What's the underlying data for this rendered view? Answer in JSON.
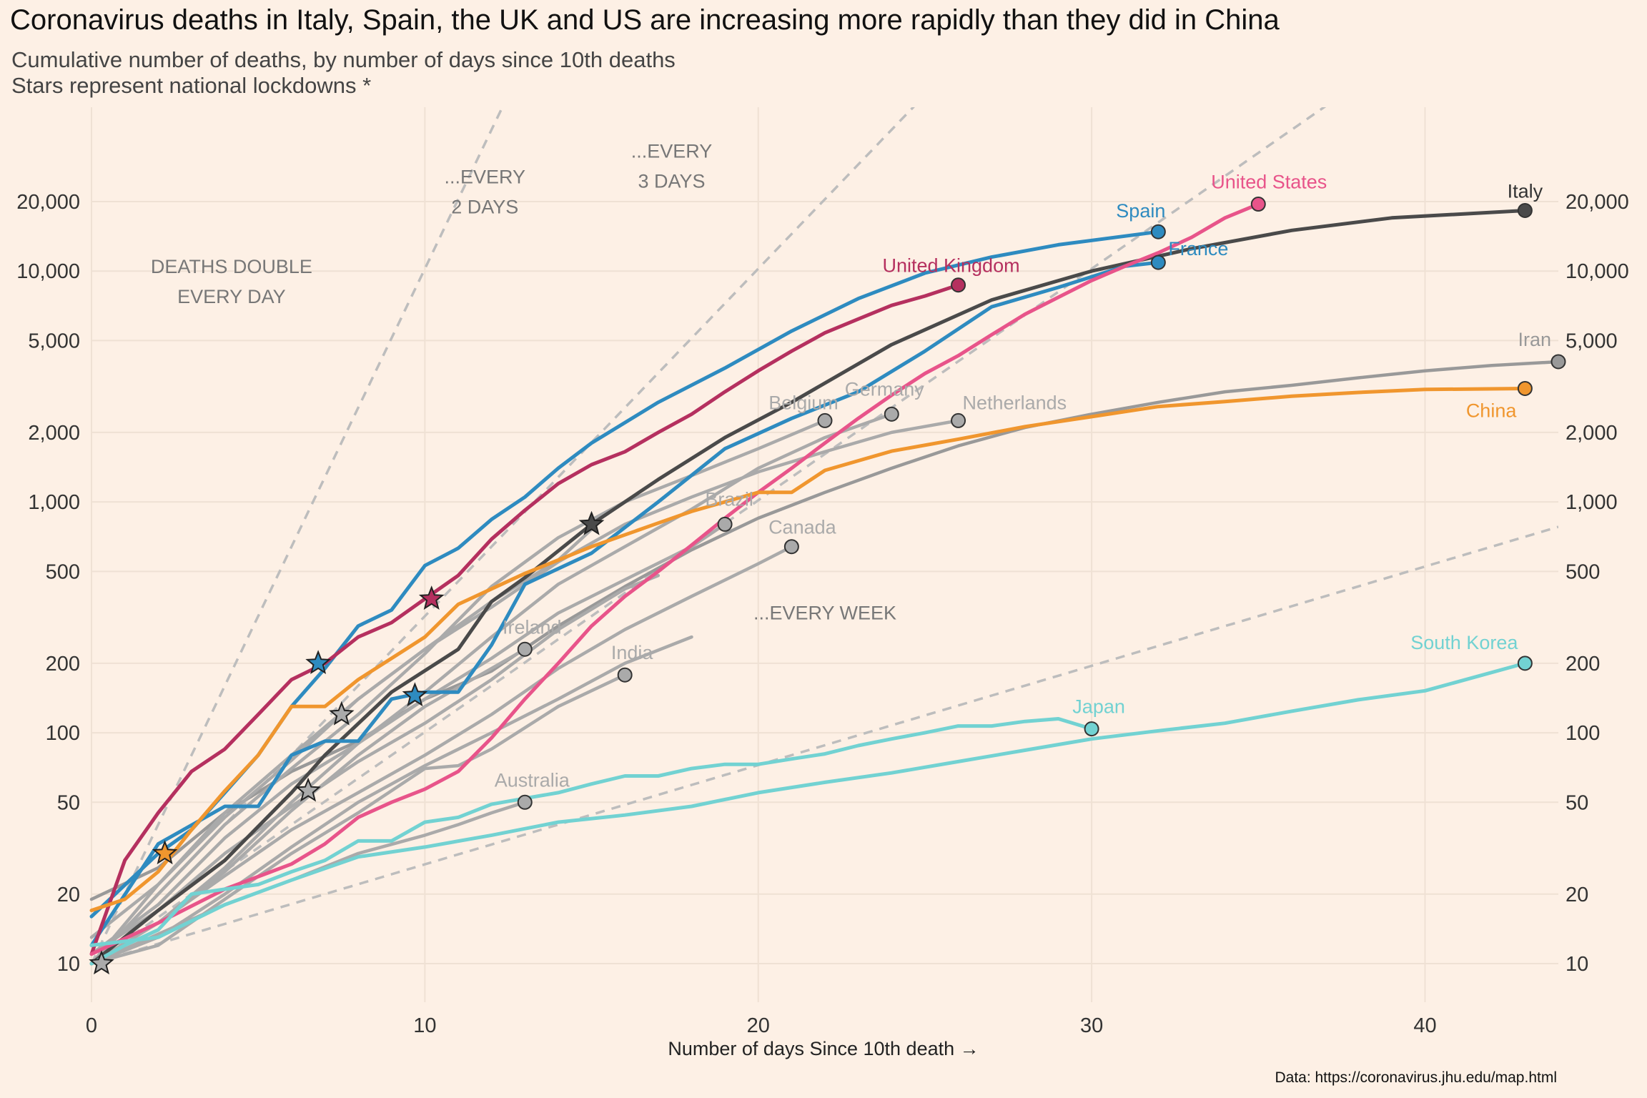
{
  "chart_data": {
    "type": "line",
    "title": "Coronavirus deaths in Italy, Spain, the UK and US are increasing more rapidly than they did in China",
    "subtitle": [
      "Cumulative number of deaths, by number of days since 10th deaths",
      "Stars represent national lockdowns *"
    ],
    "xlabel": "Number of days Since 10th death →",
    "ylabel": "",
    "caption": "Data: https://coronavirus.jhu.edu/map.html",
    "xlim": [
      0,
      44
    ],
    "ylim": [
      7.5,
      40000
    ],
    "yscale": "log",
    "grid": true,
    "legend": "none",
    "x_ticks": [
      0,
      10,
      20,
      30,
      40
    ],
    "x_tick_labels": [
      "0",
      "10",
      "20",
      "30",
      "40"
    ],
    "y_ticks": [
      10,
      20,
      50,
      100,
      200,
      500,
      1000,
      2000,
      5000,
      10000,
      20000
    ],
    "y_tick_labels": [
      "10",
      "20",
      "50",
      "100",
      "200",
      "500",
      "1,000",
      "2,000",
      "5,000",
      "10,000",
      "20,000"
    ],
    "reference_lines": [
      {
        "label": [
          "DEATHS DOUBLE",
          "EVERY DAY"
        ],
        "doubling_days": 1,
        "start": 10
      },
      {
        "label": [
          "...EVERY",
          "2 DAYS"
        ],
        "doubling_days": 2,
        "start": 10
      },
      {
        "label": [
          "...EVERY",
          "3 DAYS"
        ],
        "doubling_days": 3,
        "start": 10
      },
      {
        "label": [
          "...EVERY WEEK"
        ],
        "doubling_days": 7,
        "start": 10
      }
    ],
    "series": [
      {
        "name": "Italy",
        "color": "#4a4a4a",
        "highlight": true,
        "x": [
          0,
          2,
          4,
          6,
          7,
          9,
          11,
          12,
          13,
          15,
          17,
          19,
          21,
          24,
          27,
          30,
          33,
          36,
          39,
          43
        ],
        "y": [
          10,
          17,
          28,
          55,
          80,
          150,
          230,
          370,
          470,
          800,
          1250,
          1900,
          2700,
          4800,
          7500,
          10000,
          12500,
          15000,
          17000,
          18300
        ],
        "end_marker": true,
        "lockdown": [
          15,
          800
        ]
      },
      {
        "name": "Spain",
        "color": "#2e8bc0",
        "highlight": true,
        "x": [
          0,
          2,
          3,
          4,
          5,
          6,
          7,
          8,
          9,
          10,
          11,
          12,
          13,
          14,
          15,
          17,
          19,
          21,
          23,
          25,
          27,
          29,
          32
        ],
        "y": [
          16,
          30,
          38,
          55,
          80,
          130,
          190,
          290,
          340,
          530,
          630,
          840,
          1050,
          1400,
          1800,
          2700,
          3800,
          5500,
          7600,
          9800,
          11500,
          13000,
          14800
        ],
        "end_marker": true,
        "lockdown": [
          6.8,
          200
        ]
      },
      {
        "name": "France",
        "color": "#2e8bc0",
        "highlight": true,
        "x": [
          0,
          2,
          4,
          5,
          6,
          7,
          8,
          9,
          10,
          11,
          12,
          13,
          15,
          17,
          19,
          21,
          23,
          25,
          27,
          29,
          31,
          32
        ],
        "y": [
          12,
          33,
          48,
          48,
          80,
          92,
          92,
          140,
          150,
          150,
          240,
          440,
          600,
          1000,
          1700,
          2300,
          3000,
          4500,
          7000,
          8500,
          10500,
          10900
        ],
        "end_marker": true,
        "lockdown": [
          9.7,
          145
        ]
      },
      {
        "name": "United Kingdom",
        "color": "#b5305f",
        "highlight": true,
        "x": [
          0,
          1,
          2,
          3,
          4,
          5,
          6,
          7,
          8,
          9,
          10,
          11,
          12,
          13,
          14,
          15,
          16,
          17,
          18,
          19,
          20,
          21,
          22,
          23,
          24,
          25,
          26
        ],
        "y": [
          11,
          28,
          45,
          68,
          85,
          120,
          170,
          200,
          260,
          300,
          380,
          480,
          690,
          920,
          1200,
          1450,
          1650,
          2000,
          2400,
          3000,
          3700,
          4500,
          5400,
          6200,
          7100,
          7800,
          8700
        ],
        "end_marker": true,
        "lockdown": [
          10.2,
          380
        ]
      },
      {
        "name": "United States",
        "color": "#e8548a",
        "highlight": true,
        "x": [
          0,
          2,
          4,
          6,
          7,
          8,
          9,
          10,
          11,
          12,
          13,
          14,
          15,
          16,
          17,
          18,
          19,
          20,
          21,
          22,
          23,
          24,
          25,
          26,
          27,
          28,
          29,
          30,
          31,
          32,
          33,
          34,
          35
        ],
        "y": [
          11,
          15,
          21,
          27,
          33,
          43,
          50,
          57,
          68,
          95,
          140,
          200,
          290,
          390,
          500,
          650,
          850,
          1100,
          1400,
          1800,
          2300,
          2900,
          3600,
          4300,
          5300,
          6500,
          7700,
          9100,
          10500,
          12000,
          14000,
          17000,
          19500
        ],
        "end_marker": true
      },
      {
        "name": "China",
        "color": "#f0962e",
        "highlight": true,
        "x": [
          0,
          1,
          2,
          3,
          4,
          5,
          6,
          7,
          8,
          9,
          10,
          11,
          12,
          13,
          14,
          15,
          16,
          17,
          18,
          19,
          20,
          21,
          22,
          24,
          26,
          28,
          30,
          32,
          34,
          36,
          38,
          40,
          43
        ],
        "y": [
          17,
          19,
          25,
          38,
          56,
          80,
          130,
          130,
          170,
          210,
          260,
          360,
          420,
          490,
          560,
          640,
          720,
          810,
          910,
          1000,
          1100,
          1100,
          1370,
          1660,
          1870,
          2120,
          2340,
          2590,
          2720,
          2870,
          2980,
          3070,
          3100
        ],
        "end_marker": true,
        "lockdown": [
          2.2,
          30
        ]
      },
      {
        "name": "Iran",
        "color": "#999999",
        "highlight": false,
        "x": [
          0,
          2,
          4,
          6,
          8,
          10,
          12,
          14,
          16,
          18,
          20,
          22,
          24,
          26,
          28,
          30,
          32,
          34,
          36,
          38,
          40,
          42,
          44
        ],
        "y": [
          19,
          26,
          45,
          68,
          92,
          140,
          185,
          290,
          430,
          620,
          850,
          1100,
          1400,
          1750,
          2100,
          2400,
          2700,
          3000,
          3200,
          3450,
          3700,
          3900,
          4050
        ],
        "end_marker": true
      },
      {
        "name": "Germany",
        "color": "#aaaaaa",
        "highlight": false,
        "x": [
          0,
          2,
          4,
          6,
          8,
          10,
          12,
          14,
          16,
          18,
          20,
          22,
          24
        ],
        "y": [
          11,
          15,
          26,
          50,
          90,
          150,
          260,
          440,
          640,
          930,
          1400,
          1900,
          2400
        ],
        "end_marker": true,
        "lockdown": [
          7.5,
          120
        ]
      },
      {
        "name": "Belgium",
        "color": "#aaaaaa",
        "highlight": false,
        "x": [
          0,
          2,
          4,
          6,
          8,
          10,
          12,
          14,
          16,
          18,
          20,
          22
        ],
        "y": [
          10,
          20,
          40,
          70,
          120,
          220,
          430,
          700,
          1000,
          1300,
          1700,
          2250
        ],
        "end_marker": true
      },
      {
        "name": "Netherlands",
        "color": "#aaaaaa",
        "highlight": false,
        "x": [
          0,
          2,
          4,
          6,
          8,
          10,
          12,
          14,
          16,
          18,
          20,
          22,
          24,
          26
        ],
        "y": [
          10,
          22,
          43,
          76,
          140,
          230,
          350,
          550,
          800,
          1050,
          1350,
          1650,
          2000,
          2250
        ],
        "end_marker": true
      },
      {
        "name": "Brazil",
        "color": "#aaaaaa",
        "highlight": false,
        "x": [
          0,
          2,
          4,
          6,
          8,
          10,
          12,
          14,
          16,
          18,
          19
        ],
        "y": [
          11,
          18,
          35,
          60,
          90,
          140,
          210,
          330,
          460,
          640,
          800
        ],
        "end_marker": true
      },
      {
        "name": "Canada",
        "color": "#aaaaaa",
        "highlight": false,
        "x": [
          0,
          2,
          4,
          6,
          8,
          10,
          12,
          14,
          16,
          18,
          20,
          21
        ],
        "y": [
          11,
          15,
          24,
          38,
          55,
          80,
          120,
          190,
          280,
          390,
          540,
          640
        ],
        "end_marker": true
      },
      {
        "name": "Ireland",
        "color": "#aaaaaa",
        "highlight": false,
        "x": [
          0,
          2,
          4,
          6,
          8,
          10,
          12,
          13
        ],
        "y": [
          10,
          15,
          25,
          46,
          80,
          130,
          190,
          230
        ],
        "end_marker": true,
        "lockdown": [
          6.5,
          56
        ]
      },
      {
        "name": "India",
        "color": "#aaaaaa",
        "highlight": false,
        "x": [
          0,
          2,
          4,
          6,
          8,
          10,
          11,
          12,
          14,
          16
        ],
        "y": [
          10,
          12,
          19,
          30,
          45,
          70,
          72,
          85,
          130,
          178
        ],
        "end_marker": true,
        "lockdown": [
          0.3,
          10
        ]
      },
      {
        "name": "Australia",
        "color": "#aaaaaa",
        "highlight": false,
        "x": [
          0,
          4,
          6,
          8,
          10,
          11,
          12,
          13
        ],
        "y": [
          10,
          18,
          23,
          30,
          36,
          40,
          45,
          50
        ],
        "end_marker": true
      },
      {
        "name": "",
        "color": "#aaaaaa",
        "highlight": false,
        "x": [
          0,
          2,
          4,
          6,
          8,
          10,
          12,
          14,
          15
        ],
        "y": [
          13,
          22,
          45,
          80,
          140,
          230,
          370,
          560,
          760
        ]
      },
      {
        "name": "",
        "color": "#aaaaaa",
        "highlight": false,
        "x": [
          0,
          2,
          4,
          6,
          8,
          10,
          12,
          14,
          16,
          17
        ],
        "y": [
          11,
          17,
          30,
          48,
          75,
          110,
          170,
          280,
          420,
          480
        ]
      },
      {
        "name": "",
        "color": "#aaaaaa",
        "highlight": false,
        "x": [
          0,
          2,
          4,
          6,
          8,
          10,
          12,
          14,
          16,
          18
        ],
        "y": [
          10,
          13,
          20,
          32,
          50,
          72,
          100,
          140,
          200,
          260
        ]
      },
      {
        "name": "South Korea",
        "color": "#72d2d2",
        "highlight": true,
        "x": [
          0,
          2,
          4,
          6,
          8,
          10,
          12,
          14,
          16,
          18,
          20,
          22,
          24,
          26,
          28,
          30,
          32,
          34,
          36,
          38,
          40,
          43
        ],
        "y": [
          12,
          13,
          18,
          23,
          29,
          32,
          36,
          41,
          44,
          48,
          55,
          61,
          67,
          75,
          84,
          94,
          102,
          110,
          124,
          139,
          152,
          200
        ],
        "end_marker": true
      },
      {
        "name": "Japan",
        "color": "#72d2d2",
        "highlight": true,
        "x": [
          0,
          1,
          2,
          3,
          4,
          5,
          6,
          7,
          8,
          9,
          10,
          11,
          12,
          13,
          14,
          15,
          16,
          17,
          18,
          19,
          20,
          21,
          22,
          23,
          24,
          25,
          26,
          27,
          28,
          29,
          30
        ],
        "y": [
          10,
          12,
          14,
          20,
          21,
          22,
          25,
          28,
          34,
          34,
          41,
          43,
          49,
          52,
          55,
          60,
          65,
          65,
          70,
          73,
          73,
          77,
          81,
          88,
          94,
          100,
          107,
          107,
          112,
          115,
          104
        ],
        "end_marker": true
      }
    ],
    "labels": [
      {
        "text": "Italy",
        "series": "Italy",
        "color": "#333333"
      },
      {
        "text": "Spain",
        "series": "Spain",
        "color": "#2e8bc0"
      },
      {
        "text": "France",
        "series": "France",
        "color": "#2e8bc0"
      },
      {
        "text": "United Kingdom",
        "series": "United Kingdom",
        "color": "#b5305f"
      },
      {
        "text": "United States",
        "series": "United States",
        "color": "#e8548a"
      },
      {
        "text": "China",
        "series": "China",
        "color": "#f0962e"
      },
      {
        "text": "Iran",
        "series": "Iran",
        "color": "#999999"
      },
      {
        "text": "Germany",
        "series": "Germany",
        "color": "#aaaaaa"
      },
      {
        "text": "Belgium",
        "series": "Belgium",
        "color": "#aaaaaa"
      },
      {
        "text": "Netherlands",
        "series": "Netherlands",
        "color": "#aaaaaa"
      },
      {
        "text": "Brazil",
        "series": "Brazil",
        "color": "#aaaaaa"
      },
      {
        "text": "Canada",
        "series": "Canada",
        "color": "#aaaaaa"
      },
      {
        "text": "Ireland",
        "series": "Ireland",
        "color": "#aaaaaa"
      },
      {
        "text": "India",
        "series": "India",
        "color": "#aaaaaa"
      },
      {
        "text": "Australia",
        "series": "Australia",
        "color": "#aaaaaa"
      },
      {
        "text": "South Korea",
        "series": "South Korea",
        "color": "#72d2d2"
      },
      {
        "text": "Japan",
        "series": "Japan",
        "color": "#72d2d2"
      }
    ]
  }
}
